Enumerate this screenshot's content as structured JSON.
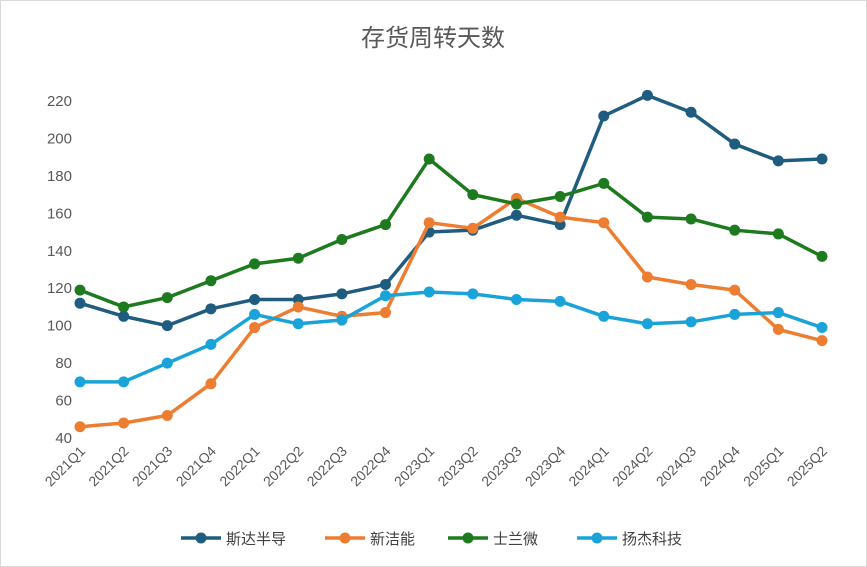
{
  "chart_data": {
    "type": "line",
    "title": "存货周转天数",
    "xlabel": "",
    "ylabel": "",
    "ylim": [
      40,
      230
    ],
    "yticks": [
      40,
      60,
      80,
      100,
      120,
      140,
      160,
      180,
      200,
      220
    ],
    "grid": false,
    "legend": "bottom",
    "categories": [
      "2021Q1",
      "2021Q2",
      "2021Q3",
      "2021Q4",
      "2022Q1",
      "2022Q2",
      "2022Q3",
      "2022Q4",
      "2023Q1",
      "2023Q2",
      "2023Q3",
      "2023Q4",
      "2024Q1",
      "2024Q2",
      "2024Q3",
      "2024Q4",
      "2025Q1",
      "2025Q2"
    ],
    "series": [
      {
        "name": "斯达半导",
        "color": "#1f5c80",
        "values": [
          112,
          105,
          100,
          109,
          114,
          114,
          117,
          122,
          150,
          151,
          159,
          154,
          212,
          223,
          214,
          197,
          188,
          189
        ]
      },
      {
        "name": "新洁能",
        "color": "#ed7d31",
        "values": [
          46,
          48,
          52,
          69,
          99,
          110,
          105,
          107,
          155,
          152,
          168,
          158,
          155,
          126,
          122,
          119,
          98,
          92
        ]
      },
      {
        "name": "士兰微",
        "color": "#1e7a1e",
        "values": [
          119,
          110,
          115,
          124,
          133,
          136,
          146,
          154,
          189,
          170,
          165,
          169,
          176,
          158,
          157,
          151,
          149,
          137
        ]
      },
      {
        "name": "扬杰科技",
        "color": "#1aa3d9",
        "values": [
          70,
          70,
          80,
          90,
          106,
          101,
          103,
          116,
          118,
          117,
          114,
          113,
          105,
          101,
          102,
          106,
          107,
          99
        ]
      }
    ]
  }
}
